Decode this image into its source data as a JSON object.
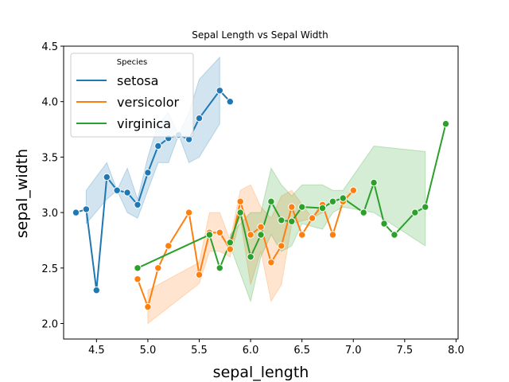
{
  "chart_data": {
    "type": "line",
    "title": "Sepal Length vs Sepal Width",
    "xlabel": "sepal_length",
    "ylabel": "sepal_width",
    "xlim": [
      4.18,
      8.02
    ],
    "ylim": [
      1.86,
      4.5
    ],
    "xticks": [
      4.5,
      5.0,
      5.5,
      6.0,
      6.5,
      7.0,
      7.5,
      8.0
    ],
    "yticks": [
      2.0,
      2.5,
      3.0,
      3.5,
      4.0,
      4.5
    ],
    "legend": {
      "title": "Species",
      "placement": "top-left"
    },
    "marker": "circle",
    "series": [
      {
        "name": "setosa",
        "color": "#1f77b4",
        "points": [
          {
            "x": 4.3,
            "y": 3.0
          },
          {
            "x": 4.4,
            "y": 3.03
          },
          {
            "x": 4.5,
            "y": 2.3
          },
          {
            "x": 4.6,
            "y": 3.32
          },
          {
            "x": 4.7,
            "y": 3.2
          },
          {
            "x": 4.8,
            "y": 3.18
          },
          {
            "x": 4.9,
            "y": 3.07
          },
          {
            "x": 5.0,
            "y": 3.36
          },
          {
            "x": 5.1,
            "y": 3.6
          },
          {
            "x": 5.2,
            "y": 3.67
          },
          {
            "x": 5.3,
            "y": 3.7
          },
          {
            "x": 5.4,
            "y": 3.66
          },
          {
            "x": 5.5,
            "y": 3.85
          },
          {
            "x": 5.7,
            "y": 4.1
          },
          {
            "x": 5.8,
            "y": 4.0
          }
        ],
        "ci": [
          {
            "x": 4.4,
            "lo": 2.9,
            "hi": 3.2
          },
          {
            "x": 4.6,
            "lo": 3.12,
            "hi": 3.45
          },
          {
            "x": 4.7,
            "lo": 3.2,
            "hi": 3.2
          },
          {
            "x": 4.8,
            "lo": 3.0,
            "hi": 3.4
          },
          {
            "x": 4.9,
            "lo": 2.95,
            "hi": 3.12
          },
          {
            "x": 5.0,
            "lo": 3.2,
            "hi": 3.5
          },
          {
            "x": 5.1,
            "lo": 3.45,
            "hi": 3.8
          },
          {
            "x": 5.2,
            "lo": 3.45,
            "hi": 3.9
          },
          {
            "x": 5.3,
            "lo": 3.7,
            "hi": 3.7
          },
          {
            "x": 5.4,
            "lo": 3.45,
            "hi": 3.9
          },
          {
            "x": 5.5,
            "lo": 3.5,
            "hi": 4.2
          },
          {
            "x": 5.7,
            "lo": 3.8,
            "hi": 4.4
          }
        ]
      },
      {
        "name": "versicolor",
        "color": "#ff7f0e",
        "points": [
          {
            "x": 4.9,
            "y": 2.4
          },
          {
            "x": 5.0,
            "y": 2.15
          },
          {
            "x": 5.1,
            "y": 2.5
          },
          {
            "x": 5.2,
            "y": 2.7
          },
          {
            "x": 5.4,
            "y": 3.0
          },
          {
            "x": 5.5,
            "y": 2.44
          },
          {
            "x": 5.6,
            "y": 2.82
          },
          {
            "x": 5.7,
            "y": 2.82
          },
          {
            "x": 5.8,
            "y": 2.67
          },
          {
            "x": 5.9,
            "y": 3.1
          },
          {
            "x": 6.0,
            "y": 2.8
          },
          {
            "x": 6.1,
            "y": 2.87
          },
          {
            "x": 6.2,
            "y": 2.55
          },
          {
            "x": 6.3,
            "y": 2.7
          },
          {
            "x": 6.4,
            "y": 3.05
          },
          {
            "x": 6.5,
            "y": 2.8
          },
          {
            "x": 6.6,
            "y": 2.95
          },
          {
            "x": 6.7,
            "y": 3.07
          },
          {
            "x": 6.8,
            "y": 2.8
          },
          {
            "x": 6.9,
            "y": 3.1
          },
          {
            "x": 7.0,
            "y": 3.2
          }
        ],
        "ci": [
          {
            "x": 5.0,
            "lo": 2.0,
            "hi": 2.3
          },
          {
            "x": 5.5,
            "lo": 2.36,
            "hi": 2.55
          },
          {
            "x": 5.6,
            "lo": 2.65,
            "hi": 3.0
          },
          {
            "x": 5.7,
            "lo": 2.65,
            "hi": 3.0
          },
          {
            "x": 5.8,
            "lo": 2.6,
            "hi": 2.75
          },
          {
            "x": 5.9,
            "lo": 2.95,
            "hi": 3.2
          },
          {
            "x": 6.0,
            "lo": 2.35,
            "hi": 3.25
          },
          {
            "x": 6.1,
            "lo": 2.65,
            "hi": 3.05
          },
          {
            "x": 6.2,
            "lo": 2.2,
            "hi": 2.95
          },
          {
            "x": 6.3,
            "lo": 2.35,
            "hi": 3.15
          },
          {
            "x": 6.4,
            "lo": 2.9,
            "hi": 3.2
          },
          {
            "x": 6.6,
            "lo": 2.95,
            "hi": 2.95
          },
          {
            "x": 6.7,
            "lo": 3.0,
            "hi": 3.1
          }
        ]
      },
      {
        "name": "virginica",
        "color": "#2ca02c",
        "points": [
          {
            "x": 4.9,
            "y": 2.5
          },
          {
            "x": 5.6,
            "y": 2.8
          },
          {
            "x": 5.7,
            "y": 2.5
          },
          {
            "x": 5.8,
            "y": 2.73
          },
          {
            "x": 5.9,
            "y": 3.0
          },
          {
            "x": 6.0,
            "y": 2.6
          },
          {
            "x": 6.1,
            "y": 2.8
          },
          {
            "x": 6.2,
            "y": 3.1
          },
          {
            "x": 6.3,
            "y": 2.93
          },
          {
            "x": 6.4,
            "y": 2.92
          },
          {
            "x": 6.5,
            "y": 3.05
          },
          {
            "x": 6.7,
            "y": 3.04
          },
          {
            "x": 6.8,
            "y": 3.1
          },
          {
            "x": 6.9,
            "y": 3.13
          },
          {
            "x": 7.1,
            "y": 3.0
          },
          {
            "x": 7.2,
            "y": 3.27
          },
          {
            "x": 7.3,
            "y": 2.9
          },
          {
            "x": 7.4,
            "y": 2.8
          },
          {
            "x": 7.6,
            "y": 3.0
          },
          {
            "x": 7.7,
            "y": 3.05
          },
          {
            "x": 7.9,
            "y": 3.8
          }
        ],
        "ci": [
          {
            "x": 5.8,
            "lo": 2.7,
            "hi": 2.8
          },
          {
            "x": 6.0,
            "lo": 2.2,
            "hi": 3.0
          },
          {
            "x": 6.1,
            "lo": 2.6,
            "hi": 3.0
          },
          {
            "x": 6.2,
            "lo": 2.8,
            "hi": 3.4
          },
          {
            "x": 6.3,
            "lo": 2.65,
            "hi": 3.25
          },
          {
            "x": 6.4,
            "lo": 2.7,
            "hi": 3.15
          },
          {
            "x": 6.5,
            "lo": 2.9,
            "hi": 3.25
          },
          {
            "x": 6.7,
            "lo": 2.85,
            "hi": 3.25
          },
          {
            "x": 6.8,
            "lo": 3.0,
            "hi": 3.2
          },
          {
            "x": 6.9,
            "lo": 3.05,
            "hi": 3.2
          },
          {
            "x": 7.2,
            "lo": 3.0,
            "hi": 3.6
          },
          {
            "x": 7.7,
            "lo": 2.7,
            "hi": 3.55
          }
        ]
      }
    ]
  }
}
